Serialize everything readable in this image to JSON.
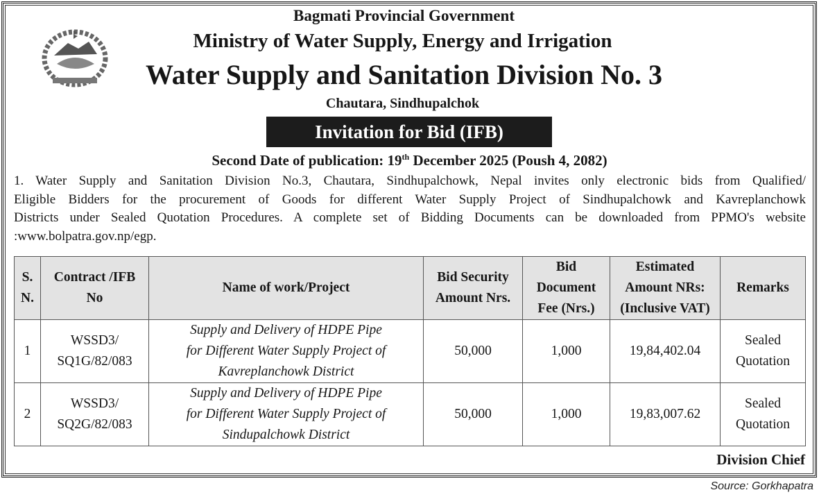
{
  "header": {
    "government": "Bagmati Provincial Government",
    "ministry": "Ministry of  Water Supply, Energy and Irrigation",
    "division": "Water Supply and Sanitation Division No. 3",
    "location": "Chautara, Sindhupalchok",
    "notice_title": "Invitation for Bid (IFB)",
    "date_prefix": "Second Date of publication: 19",
    "date_sup": "th",
    "date_suffix": " December 2025 (Poush 4, 2082)",
    "emblem_icon": "nepal-government-emblem"
  },
  "body": {
    "lines": [
      "1. Water Supply and Sanitation Division No.3, Chautara, Sindhupalchowk, Nepal invites only electronic bids from Qualified/",
      "Eligible Bidders for the procurement of Goods for different Water Supply Project of Sindhupalchowk and Kavreplanchowk",
      "Districts under Sealed Quotation Procedures. A complete set of Bidding Documents can be downloaded from PPMO's website",
      ":www.bolpatra.gov.np/egp."
    ]
  },
  "table": {
    "columns": [
      [
        "S.",
        "N."
      ],
      [
        "Contract /IFB",
        "No"
      ],
      [
        "Name of work/Project"
      ],
      [
        "Bid Security",
        "Amount Nrs."
      ],
      [
        "Bid",
        "Document",
        "Fee (Nrs.)"
      ],
      [
        "Estimated",
        "Amount NRs:",
        "(Inclusive VAT)"
      ],
      [
        "Remarks"
      ]
    ],
    "rows": [
      {
        "sn": "1",
        "contract": [
          "WSSD3/",
          "SQ1G/82/083"
        ],
        "work": [
          "Supply and Delivery of HDPE Pipe",
          "for Different Water Supply Project of",
          "Kavreplanchowk District"
        ],
        "bid_security": "50,000",
        "doc_fee": "1,000",
        "estimated": "19,84,402.04",
        "remarks": [
          "Sealed",
          "Quotation"
        ]
      },
      {
        "sn": "2",
        "contract": [
          "WSSD3/",
          "SQ2G/82/083"
        ],
        "work": [
          "Supply and Delivery of HDPE Pipe",
          "for Different Water Supply Project of",
          "Sindupalchowk District"
        ],
        "bid_security": "50,000",
        "doc_fee": "1,000",
        "estimated": "19,83,007.62",
        "remarks": [
          "Sealed",
          "Quotation"
        ]
      }
    ]
  },
  "footer": {
    "signatory": "Division Chief",
    "source": "Source: Gorkhapatra"
  },
  "colors": {
    "header_bg": "#e3e3e3",
    "title_bar": "#1c1c1c"
  }
}
